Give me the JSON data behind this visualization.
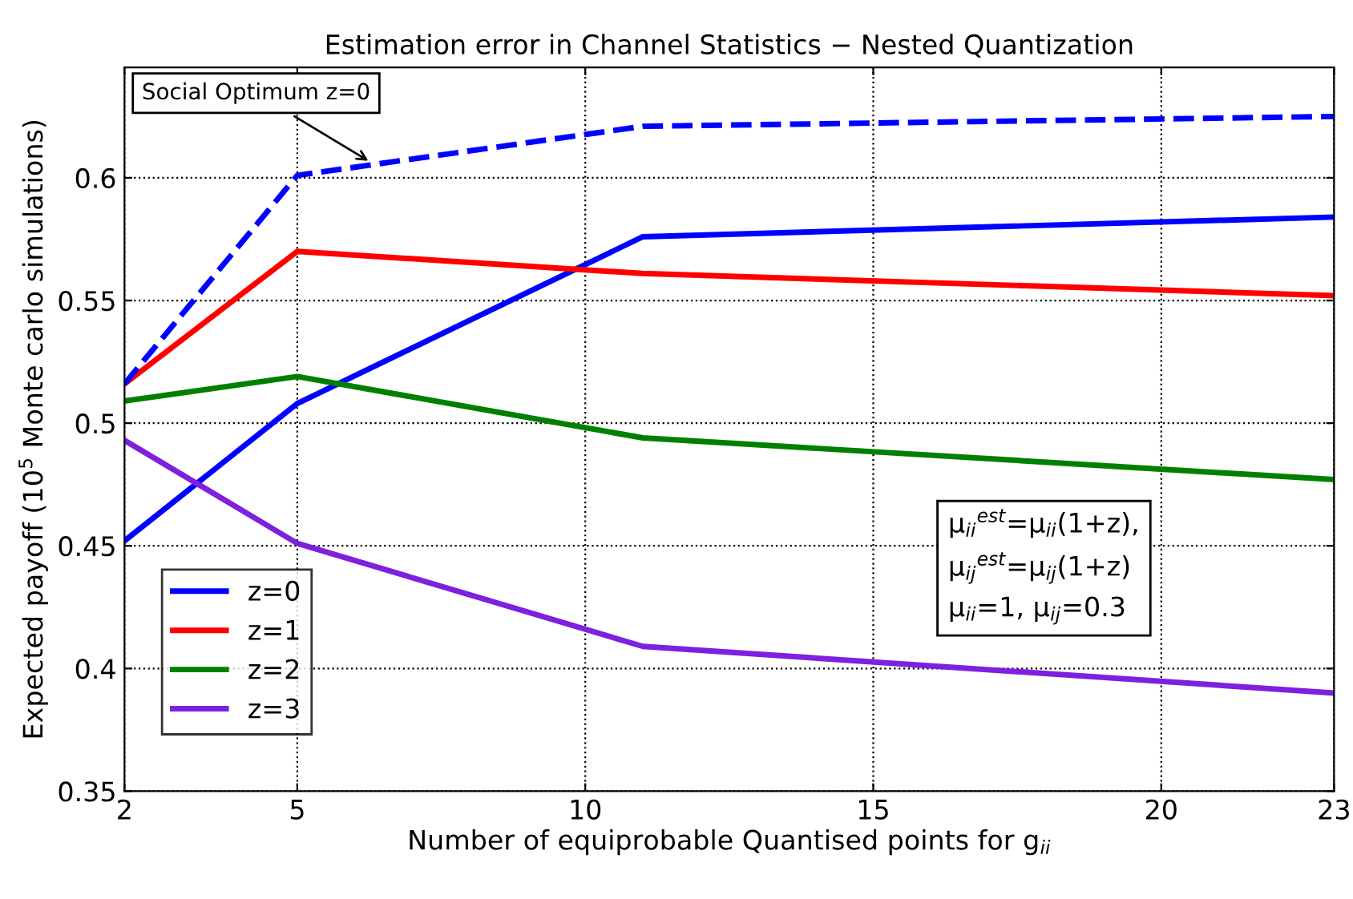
{
  "chart_data": {
    "type": "line",
    "title": "Estimation error in Channel Statistics − Nested Quantization",
    "xlabel": "Number of equiprobable Quantised points for g$_{ii}$",
    "ylabel": "Expected payoff (10$^{5}$ Monte carlo simulations)",
    "x": [
      2,
      5,
      11,
      23
    ],
    "series": [
      {
        "name": "z=0",
        "color": "#0000ff",
        "values": [
          0.452,
          0.508,
          0.576,
          0.584
        ]
      },
      {
        "name": "z=1",
        "color": "#ff0000",
        "values": [
          0.516,
          0.57,
          0.561,
          0.552
        ]
      },
      {
        "name": "z=2",
        "color": "#008000",
        "values": [
          0.509,
          0.519,
          0.494,
          0.477
        ]
      },
      {
        "name": "z=3",
        "color": "#7f1fdf",
        "values": [
          0.493,
          0.451,
          0.409,
          0.39
        ]
      },
      {
        "color": "#0000ff",
        "line_style": "dashed",
        "values": [
          0.516,
          0.601,
          0.621,
          0.625
        ]
      }
    ],
    "xlim": [
      2,
      23
    ],
    "xticks": [
      2,
      5,
      10,
      15,
      20,
      23
    ],
    "ylim": [
      0.35,
      0.645
    ],
    "yticks": [
      0.35,
      0.4,
      0.45,
      0.5,
      0.55,
      0.6
    ],
    "grid": true,
    "legend": "bottom left",
    "marker": "none",
    "line_style": "solid",
    "annotations": [
      {
        "text": "Social Optimum z=0",
        "x": 6.3,
        "y": 0.606
      },
      "μ$_{ii}$$^{est}$=μ$_{ii}$(1+z),\nμ$_{ij}$$^{est}$=μ$_{ij}$(1+z)\nμ$_{ii}$=1, μ$_{ij}$=0.3"
    ]
  }
}
